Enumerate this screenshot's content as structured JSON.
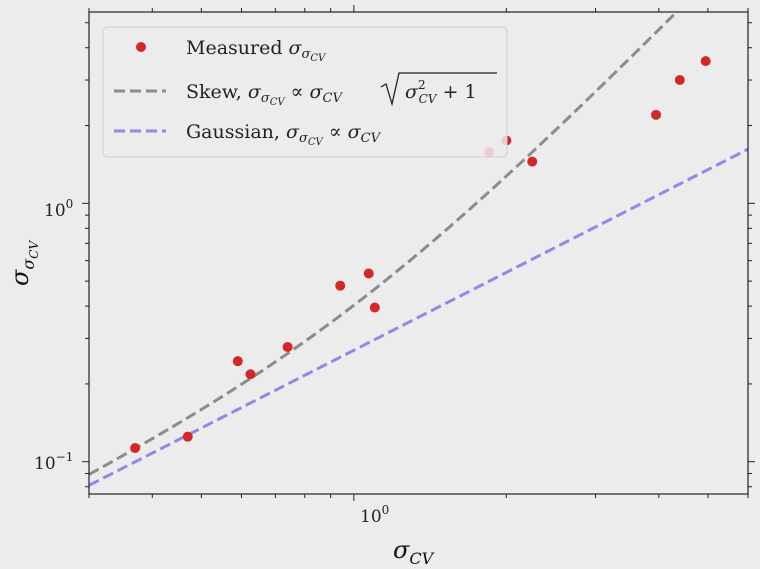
{
  "chart_data": {
    "type": "scatter",
    "xscale": "log",
    "yscale": "log",
    "xlim": [
      0.3,
      6.0
    ],
    "ylim": [
      0.075,
      5.5
    ],
    "grid": false,
    "legend_position": "top-left",
    "xlabel": "σ_CV",
    "ylabel": "σ_σCV",
    "x_tick_labels": [
      {
        "value": 1,
        "label": "10^0"
      }
    ],
    "y_tick_labels": [
      {
        "value": 0.1,
        "label": "10^-1"
      },
      {
        "value": 1,
        "label": "10^0"
      }
    ],
    "series": [
      {
        "name": "Measured σ_σCV",
        "kind": "scatter",
        "color": "#d62728",
        "points": [
          {
            "x": 0.37,
            "y": 0.113
          },
          {
            "x": 0.47,
            "y": 0.125
          },
          {
            "x": 0.59,
            "y": 0.245
          },
          {
            "x": 0.625,
            "y": 0.218
          },
          {
            "x": 0.74,
            "y": 0.278
          },
          {
            "x": 0.94,
            "y": 0.48
          },
          {
            "x": 1.07,
            "y": 0.535
          },
          {
            "x": 1.1,
            "y": 0.395
          },
          {
            "x": 1.85,
            "y": 1.58
          },
          {
            "x": 2.0,
            "y": 1.75
          },
          {
            "x": 2.25,
            "y": 1.45
          },
          {
            "x": 3.95,
            "y": 2.2
          },
          {
            "x": 4.4,
            "y": 3.0
          },
          {
            "x": 4.95,
            "y": 3.55
          }
        ]
      },
      {
        "name": "Skew, σ_σCV ∝ σ_CV √(σ_CV² + 1)",
        "kind": "line",
        "style": "dashed",
        "color": "#8c8c8c",
        "model": "skew",
        "coefficient": 0.285
      },
      {
        "name": "Gaussian, σ_σCV ∝ σ_CV",
        "kind": "line",
        "style": "dashed",
        "color": "#8b8bea",
        "model": "gaussian",
        "coefficient": 0.27
      }
    ]
  }
}
